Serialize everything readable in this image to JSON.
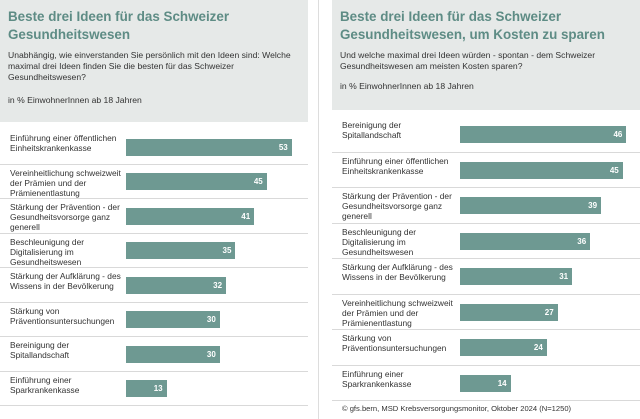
{
  "chart_data": [
    {
      "type": "bar",
      "orientation": "horizontal",
      "title": "Beste drei Ideen für das Schweizer Gesundheitswesen",
      "subtitle": "Unabhängig, wie einverstanden Sie persönlich mit den Ideen sind: Welche maximal drei Ideen finden Sie die besten für das Schweizer Gesundheitswesen?",
      "unit_label": "in % EinwohnerInnen ab 18 Jahren",
      "xlim": [
        0,
        55
      ],
      "grid": false,
      "legend": "none",
      "categories": [
        "Einführung einer öffentlichen Einheitskrankenkasse",
        "Vereinheitlichung schweizweit der Prämien und der Prämienentlastung",
        "Stärkung der Prävention - der Gesundheitsvorsorge ganz generell",
        "Beschleunigung der Digitalisierung im Gesundheitswesen",
        "Stärkung der Aufklärung - des Wissens in der Bevölkerung",
        "Stärkung von Präventionsuntersuchungen",
        "Bereinigung der Spitallandschaft",
        "Einführung einer Sparkrankenkasse"
      ],
      "values": [
        53,
        45,
        41,
        35,
        32,
        30,
        30,
        13
      ],
      "bar_color": "#6e9992"
    },
    {
      "type": "bar",
      "orientation": "horizontal",
      "title": "Beste drei Ideen für das Schweizer Gesundheitswesen, um Kosten zu sparen",
      "subtitle": "Und welche maximal drei Ideen würden - spontan - dem Schweizer Gesundheitswesen am meisten Kosten sparen?",
      "unit_label": "in % EinwohnerInnen ab 18 Jahren",
      "xlim": [
        0,
        47
      ],
      "grid": false,
      "legend": "none",
      "categories": [
        "Bereinigung der Spitallandschaft",
        "Einführung einer öffentlichen Einheitskrankenkasse",
        "Stärkung der Prävention - der Gesundheitsvorsorge ganz generell",
        "Beschleunigung der Digitalisierung im Gesundheitswesen",
        "Stärkung der Aufklärung - des Wissens in der Bevölkerung",
        "Vereinheitlichung schweizweit der Prämien und der Prämienentlastung",
        "Stärkung von Präventionsuntersuchungen",
        "Einführung einer Sparkrankenkasse"
      ],
      "values": [
        46,
        45,
        39,
        36,
        31,
        27,
        24,
        14
      ],
      "bar_color": "#6e9992"
    }
  ],
  "footer": "© gfs.bern, MSD Krebsversorgungsmonitor, Oktober 2024 (N=1250)"
}
